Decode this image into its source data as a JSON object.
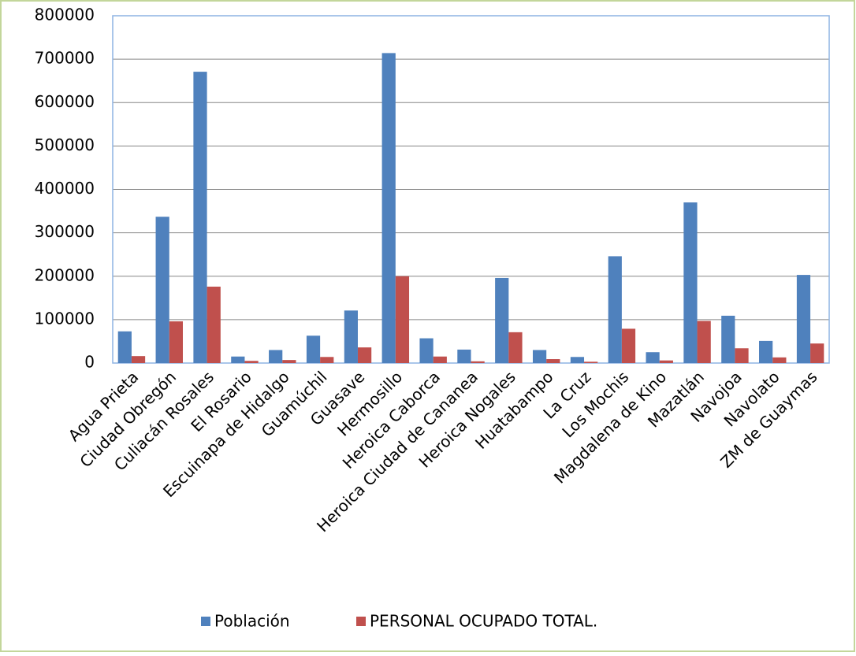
{
  "chart_data": {
    "type": "bar",
    "categories": [
      "Agua Prieta",
      "Ciudad Obregón",
      "Culiacán Rosales",
      "El Rosario",
      "Escuinapa de Hidalgo",
      "Guamúchil",
      "Guasave",
      "Hermosillo",
      "Heroica Caborca",
      "Heroica Ciudad de Cananea",
      "Heroica Nogales",
      "Huatabampo",
      "La Cruz",
      "Los Mochis",
      "Magdalena de Kino",
      "Mazatlán",
      "Navojoa",
      "Navolato",
      "ZM de Guaymas"
    ],
    "series": [
      {
        "name": "Población",
        "color": "#4f81bd",
        "values": [
          73000,
          337000,
          671000,
          15000,
          30000,
          63000,
          121000,
          714000,
          57000,
          31000,
          196000,
          30000,
          14000,
          246000,
          25000,
          370000,
          109000,
          51000,
          203000
        ]
      },
      {
        "name": "PERSONAL OCUPADO TOTAL.",
        "color": "#c0504d",
        "values": [
          16000,
          96000,
          176000,
          5000,
          7000,
          14000,
          36000,
          200000,
          15000,
          4000,
          71000,
          9000,
          3000,
          79000,
          6000,
          97000,
          34000,
          13000,
          45000
        ]
      }
    ],
    "ylim": [
      0,
      800000
    ],
    "yticks": [
      0,
      100000,
      200000,
      300000,
      400000,
      500000,
      600000,
      700000,
      800000
    ],
    "grid": true,
    "legend": "bottom"
  }
}
